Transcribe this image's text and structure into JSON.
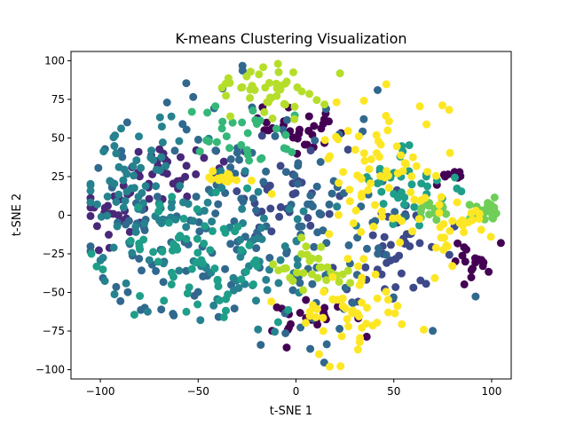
{
  "chart_data": {
    "type": "scatter",
    "title": "K-means Clustering Visualization",
    "xlabel": "t-SNE 1",
    "ylabel": "t-SNE 2",
    "xlim": [
      -115,
      110
    ],
    "ylim": [
      -106,
      106
    ],
    "xticks": [
      -100,
      -50,
      0,
      50,
      100
    ],
    "yticks": [
      -100,
      -75,
      -50,
      -25,
      0,
      25,
      50,
      75,
      100
    ],
    "xtick_labels": [
      "−100",
      "−50",
      "0",
      "50",
      "100"
    ],
    "ytick_labels": [
      "−100",
      "−75",
      "−50",
      "−25",
      "0",
      "25",
      "50",
      "75",
      "100"
    ],
    "grid": false,
    "seed": 7,
    "colormap": [
      "#440154",
      "#482878",
      "#3e4989",
      "#31688e",
      "#26828e",
      "#1f9e89",
      "#35b779",
      "#6ece58",
      "#b5de2b",
      "#fde725"
    ],
    "clusters": [
      {
        "id": 0,
        "color": "#440154",
        "n": 30,
        "center": [
          0,
          55
        ],
        "spread": [
          10,
          8
        ]
      },
      {
        "id": 1,
        "color": "#440154",
        "n": 22,
        "center": [
          5,
          -68
        ],
        "spread": [
          10,
          7
        ]
      },
      {
        "id": 2,
        "color": "#440154",
        "n": 20,
        "center": [
          90,
          -28
        ],
        "spread": [
          7,
          6
        ]
      },
      {
        "id": 3,
        "color": "#440154",
        "n": 8,
        "center": [
          82,
          25
        ],
        "spread": [
          4,
          4
        ]
      },
      {
        "id": 4,
        "color": "#482878",
        "n": 40,
        "center": [
          -65,
          25
        ],
        "spread": [
          14,
          10
        ]
      },
      {
        "id": 5,
        "color": "#482878",
        "n": 25,
        "center": [
          -95,
          0
        ],
        "spread": [
          8,
          8
        ]
      },
      {
        "id": 6,
        "color": "#3e4989",
        "n": 40,
        "center": [
          50,
          -25
        ],
        "spread": [
          12,
          18
        ]
      },
      {
        "id": 7,
        "color": "#3e4989",
        "n": 40,
        "center": [
          -10,
          10
        ],
        "spread": [
          20,
          20
        ]
      },
      {
        "id": 8,
        "color": "#31688e",
        "n": 110,
        "center": [
          -45,
          0
        ],
        "spread": [
          32,
          40
        ]
      },
      {
        "id": 9,
        "color": "#31688e",
        "n": 70,
        "center": [
          20,
          -5
        ],
        "spread": [
          28,
          40
        ]
      },
      {
        "id": 10,
        "color": "#26828e",
        "n": 90,
        "center": [
          -75,
          10
        ],
        "spread": [
          18,
          28
        ]
      },
      {
        "id": 11,
        "color": "#26828e",
        "n": 50,
        "center": [
          -20,
          -30
        ],
        "spread": [
          20,
          25
        ]
      },
      {
        "id": 12,
        "color": "#1f9e89",
        "n": 70,
        "center": [
          -55,
          -30
        ],
        "spread": [
          25,
          20
        ]
      },
      {
        "id": 13,
        "color": "#1f9e89",
        "n": 35,
        "center": [
          55,
          20
        ],
        "spread": [
          12,
          12
        ]
      },
      {
        "id": 14,
        "color": "#35b779",
        "n": 30,
        "center": [
          -25,
          50
        ],
        "spread": [
          15,
          10
        ]
      },
      {
        "id": 15,
        "color": "#6ece58",
        "n": 25,
        "center": [
          98,
          3
        ],
        "spread": [
          5,
          4
        ]
      },
      {
        "id": 16,
        "color": "#6ece58",
        "n": 15,
        "center": [
          70,
          5
        ],
        "spread": [
          5,
          4
        ]
      },
      {
        "id": 17,
        "color": "#b5de2b",
        "n": 45,
        "center": [
          -10,
          80
        ],
        "spread": [
          16,
          9
        ]
      },
      {
        "id": 18,
        "color": "#b5de2b",
        "n": 30,
        "center": [
          10,
          -35
        ],
        "spread": [
          10,
          8
        ]
      },
      {
        "id": 19,
        "color": "#fde725",
        "n": 80,
        "center": [
          45,
          25
        ],
        "spread": [
          20,
          25
        ]
      },
      {
        "id": 20,
        "color": "#fde725",
        "n": 50,
        "center": [
          30,
          -65
        ],
        "spread": [
          15,
          18
        ]
      },
      {
        "id": 21,
        "color": "#fde725",
        "n": 25,
        "center": [
          85,
          -10
        ],
        "spread": [
          8,
          12
        ]
      },
      {
        "id": 22,
        "color": "#fde725",
        "n": 15,
        "center": [
          -35,
          25
        ],
        "spread": [
          6,
          3
        ]
      }
    ]
  }
}
